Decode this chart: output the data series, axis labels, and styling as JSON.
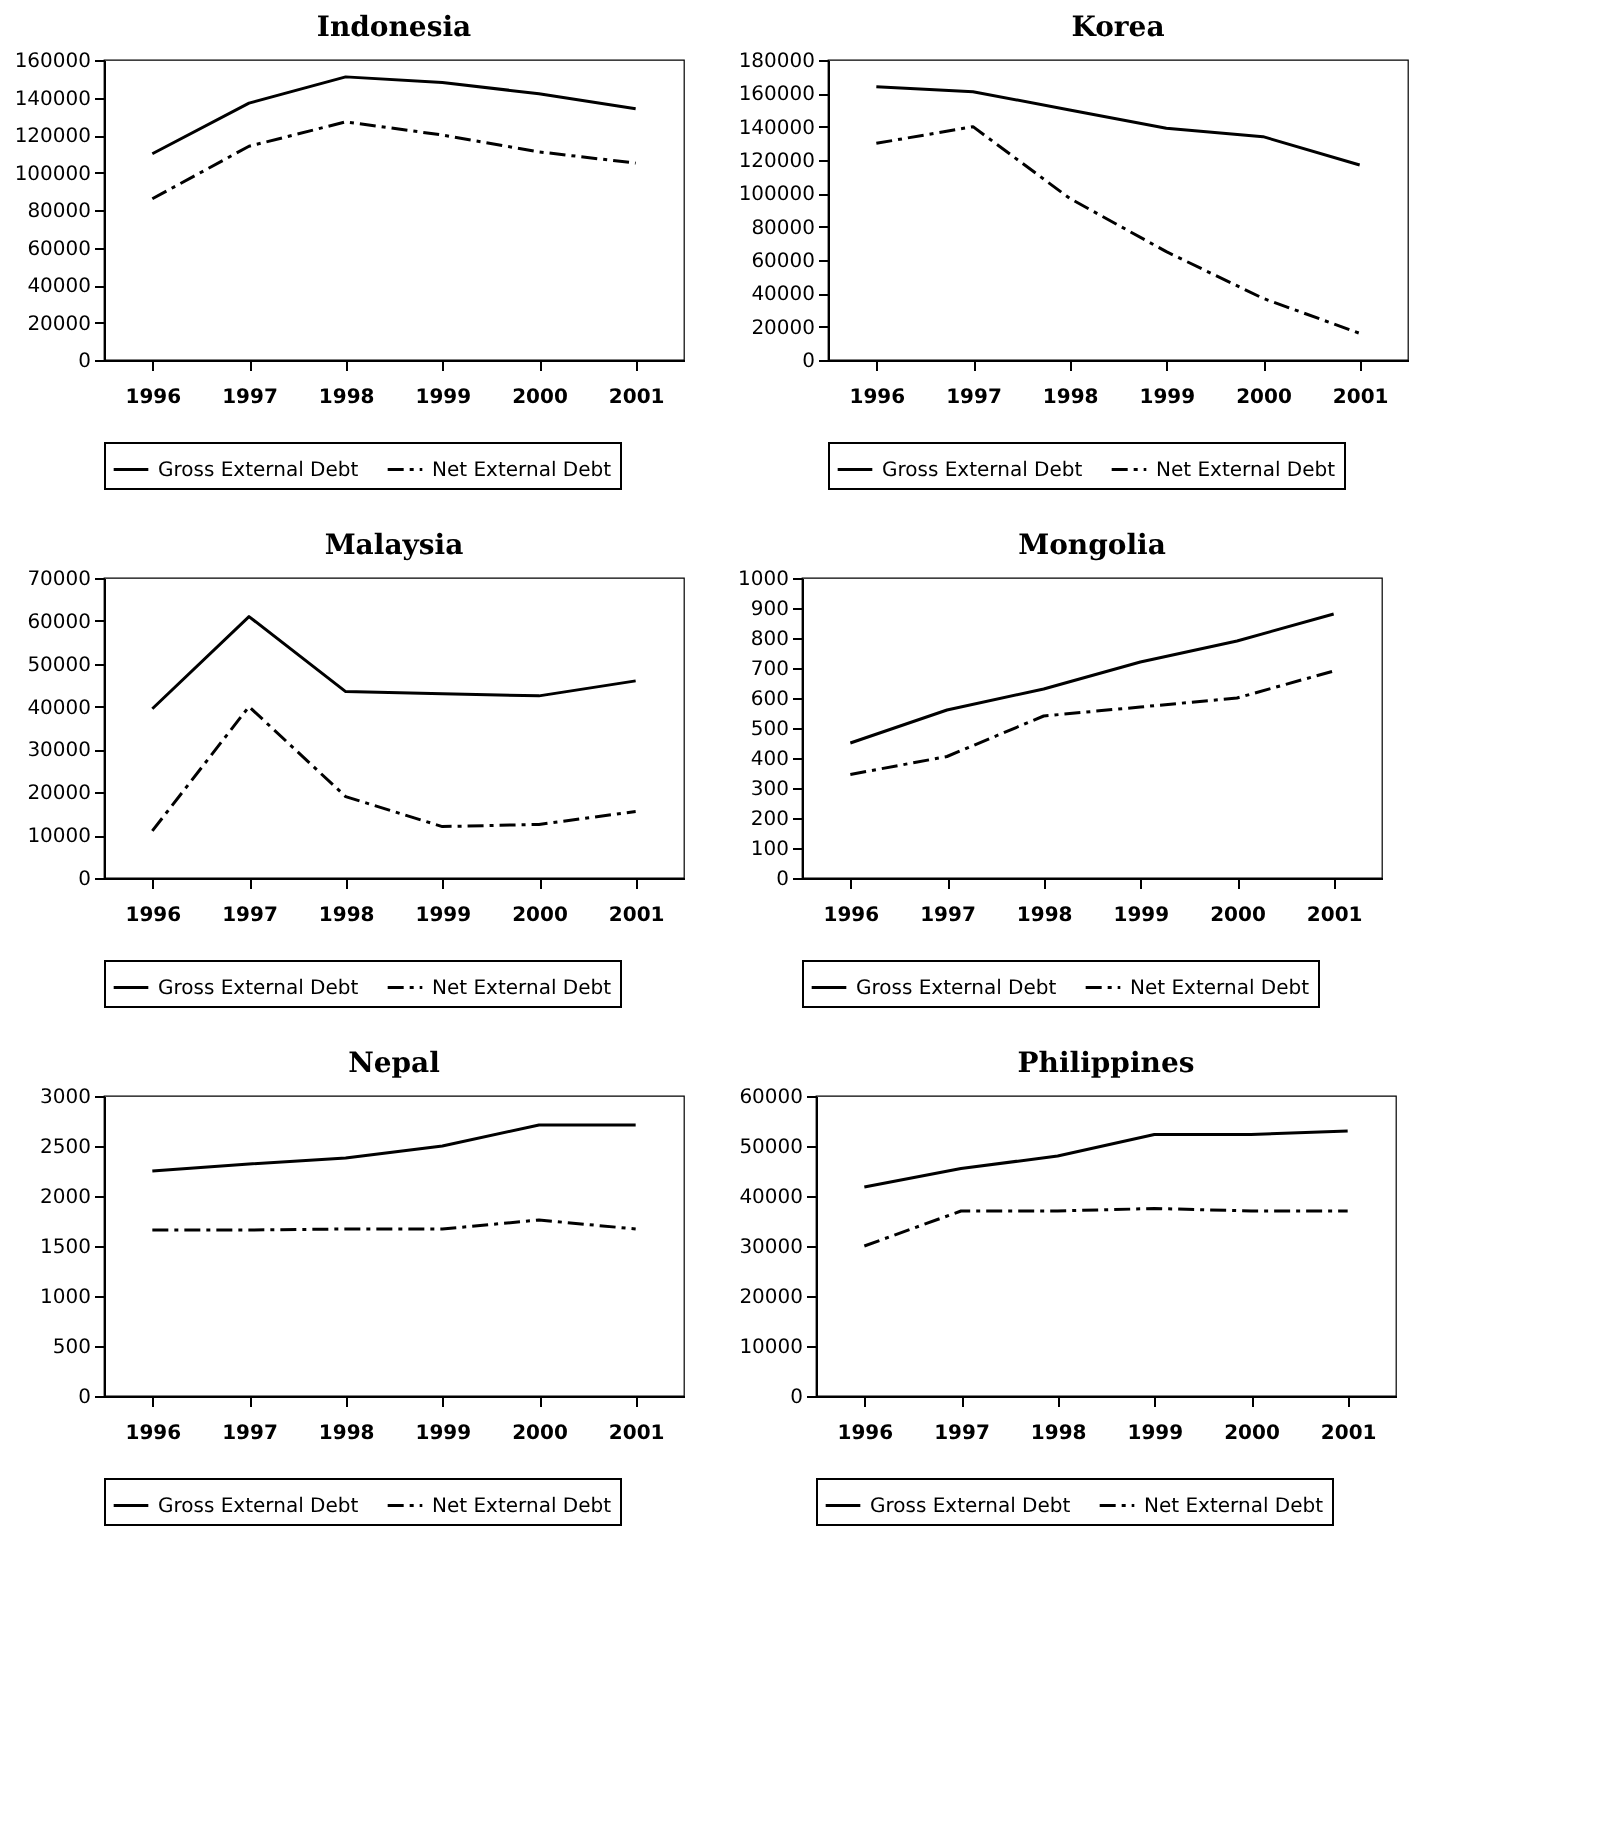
{
  "chart_data": [
    {
      "type": "line",
      "title": "Indonesia",
      "categories": [
        "1996",
        "1997",
        "1998",
        "1999",
        "2000",
        "2001"
      ],
      "ylim": [
        0,
        160000
      ],
      "yticks": [
        0,
        20000,
        40000,
        60000,
        80000,
        100000,
        120000,
        140000,
        160000
      ],
      "grid": false,
      "legend": "bottom",
      "marker": "none",
      "series": [
        {
          "name": "Gross External Debt",
          "color": "#000000",
          "line_style": "solid",
          "values": [
            110000,
            137000,
            151000,
            148000,
            142000,
            134000
          ]
        },
        {
          "name": "Net External Debt",
          "color": "#000000",
          "line_style": "dashdot",
          "values": [
            86000,
            114000,
            127000,
            120000,
            111000,
            105000
          ]
        }
      ]
    },
    {
      "type": "line",
      "title": "Korea",
      "categories": [
        "1996",
        "1997",
        "1998",
        "1999",
        "2000",
        "2001"
      ],
      "ylim": [
        0,
        180000
      ],
      "yticks": [
        0,
        20000,
        40000,
        60000,
        80000,
        100000,
        120000,
        140000,
        160000,
        180000
      ],
      "grid": false,
      "legend": "bottom",
      "marker": "none",
      "series": [
        {
          "name": "Gross External Debt",
          "color": "#000000",
          "line_style": "solid",
          "values": [
            164000,
            161000,
            150000,
            139000,
            134000,
            117000
          ]
        },
        {
          "name": "Net External Debt",
          "color": "#000000",
          "line_style": "dashdot",
          "values": [
            130000,
            140000,
            97000,
            65000,
            37000,
            16000
          ]
        }
      ]
    },
    {
      "type": "line",
      "title": "Malaysia",
      "categories": [
        "1996",
        "1997",
        "1998",
        "1999",
        "2000",
        "2001"
      ],
      "ylim": [
        0,
        70000
      ],
      "yticks": [
        0,
        10000,
        20000,
        30000,
        40000,
        50000,
        60000,
        70000
      ],
      "grid": false,
      "legend": "bottom",
      "marker": "none",
      "series": [
        {
          "name": "Gross External Debt",
          "color": "#000000",
          "line_style": "solid",
          "values": [
            39500,
            61000,
            43500,
            43000,
            42500,
            46000
          ]
        },
        {
          "name": "Net External Debt",
          "color": "#000000",
          "line_style": "dashdot",
          "values": [
            11000,
            40000,
            19000,
            12000,
            12500,
            15500
          ]
        }
      ]
    },
    {
      "type": "line",
      "title": "Mongolia",
      "categories": [
        "1996",
        "1997",
        "1998",
        "1999",
        "2000",
        "2001"
      ],
      "ylim": [
        0,
        1000
      ],
      "yticks": [
        0,
        100,
        200,
        300,
        400,
        500,
        600,
        700,
        800,
        900,
        1000
      ],
      "grid": false,
      "legend": "bottom",
      "marker": "none",
      "series": [
        {
          "name": "Gross External Debt",
          "color": "#000000",
          "line_style": "solid",
          "values": [
            450,
            560,
            630,
            720,
            790,
            880
          ]
        },
        {
          "name": "Net External Debt",
          "color": "#000000",
          "line_style": "dashdot",
          "values": [
            345,
            405,
            540,
            570,
            600,
            690
          ]
        }
      ]
    },
    {
      "type": "line",
      "title": "Nepal",
      "categories": [
        "1996",
        "1997",
        "1998",
        "1999",
        "2000",
        "2001"
      ],
      "ylim": [
        0,
        3000
      ],
      "yticks": [
        0,
        500,
        1000,
        1500,
        2000,
        2500,
        3000
      ],
      "grid": false,
      "legend": "bottom",
      "marker": "none",
      "series": [
        {
          "name": "Gross External Debt",
          "color": "#000000",
          "line_style": "solid",
          "values": [
            2250,
            2320,
            2380,
            2500,
            2710,
            2710
          ]
        },
        {
          "name": "Net External Debt",
          "color": "#000000",
          "line_style": "dashdot",
          "values": [
            1660,
            1660,
            1670,
            1670,
            1760,
            1670
          ]
        }
      ]
    },
    {
      "type": "line",
      "title": "Philippines",
      "categories": [
        "1996",
        "1997",
        "1998",
        "1999",
        "2000",
        "2001"
      ],
      "ylim": [
        0,
        60000
      ],
      "yticks": [
        0,
        10000,
        20000,
        30000,
        40000,
        50000,
        60000
      ],
      "grid": false,
      "legend": "bottom",
      "marker": "none",
      "series": [
        {
          "name": "Gross External Debt",
          "color": "#000000",
          "line_style": "solid",
          "values": [
            41800,
            45500,
            48000,
            52300,
            52300,
            53000
          ]
        },
        {
          "name": "Net External Debt",
          "color": "#000000",
          "line_style": "dashdot",
          "values": [
            30000,
            37000,
            37000,
            37500,
            37000,
            37000
          ]
        }
      ]
    }
  ]
}
